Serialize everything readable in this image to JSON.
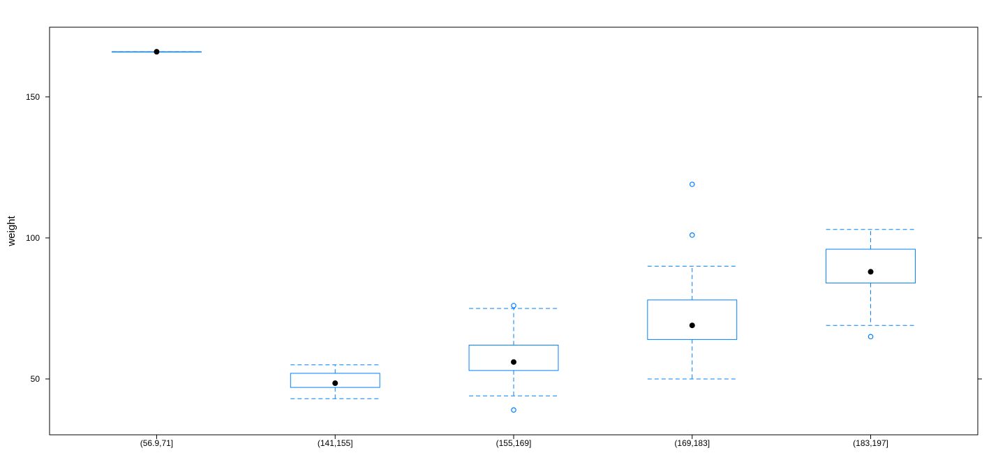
{
  "chart_data": {
    "type": "box",
    "title": "",
    "xlabel": "",
    "ylabel": "weight",
    "ylim": [
      30.2,
      174.7
    ],
    "yticks": [
      50,
      100,
      150
    ],
    "grid": false,
    "categories": [
      "(56.9,71]",
      "(141,155]",
      "(155,169]",
      "(169,183]",
      "(183,197]"
    ],
    "boxes": [
      {
        "lower_whisker": 166,
        "q1": 166,
        "median": 166,
        "q3": 166,
        "upper_whisker": 166,
        "outliers": []
      },
      {
        "lower_whisker": 43,
        "q1": 47,
        "median": 48.5,
        "q3": 52,
        "upper_whisker": 55,
        "outliers": []
      },
      {
        "lower_whisker": 44,
        "q1": 53,
        "median": 56,
        "q3": 62,
        "upper_whisker": 75,
        "outliers": [
          76,
          39
        ]
      },
      {
        "lower_whisker": 50,
        "q1": 64,
        "median": 69,
        "q3": 78,
        "upper_whisker": 90,
        "outliers": [
          101,
          119
        ]
      },
      {
        "lower_whisker": 69,
        "q1": 84,
        "median": 88,
        "q3": 96,
        "upper_whisker": 103,
        "outliers": [
          65
        ]
      }
    ],
    "colors": {
      "box": "#0080ff",
      "median_dot": "#000000"
    }
  }
}
